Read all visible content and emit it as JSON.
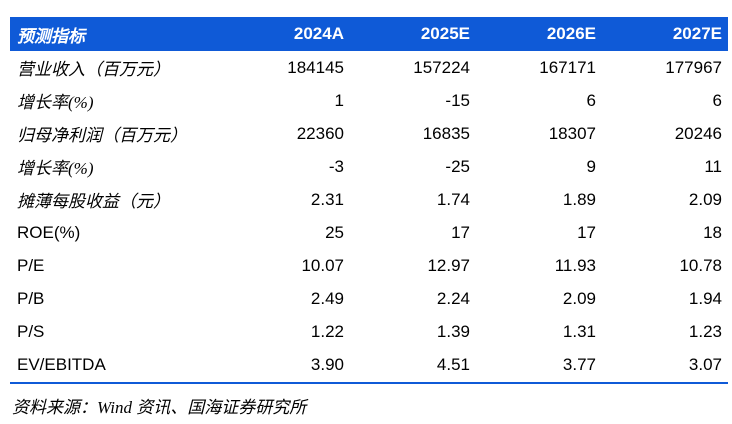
{
  "header": {
    "label": "预测指标",
    "years": [
      "2024A",
      "2025E",
      "2026E",
      "2027E"
    ]
  },
  "rows": [
    {
      "label": "营业收入（百万元）",
      "values": [
        "184145",
        "157224",
        "167171",
        "177967"
      ]
    },
    {
      "label": "增长率(%)",
      "values": [
        "1",
        "-15",
        "6",
        "6"
      ]
    },
    {
      "label": "归母净利润（百万元）",
      "values": [
        "22360",
        "16835",
        "18307",
        "20246"
      ]
    },
    {
      "label": "增长率(%)",
      "values": [
        "-3",
        "-25",
        "9",
        "11"
      ]
    },
    {
      "label": "摊薄每股收益（元）",
      "values": [
        "2.31",
        "1.74",
        "1.89",
        "2.09"
      ]
    },
    {
      "label": "ROE(%)",
      "values": [
        "25",
        "17",
        "17",
        "18"
      ]
    },
    {
      "label": "P/E",
      "values": [
        "10.07",
        "12.97",
        "11.93",
        "10.78"
      ]
    },
    {
      "label": "P/B",
      "values": [
        "2.49",
        "2.24",
        "2.09",
        "1.94"
      ]
    },
    {
      "label": "P/S",
      "values": [
        "1.22",
        "1.39",
        "1.31",
        "1.23"
      ]
    },
    {
      "label": "EV/EBITDA",
      "values": [
        "3.90",
        "4.51",
        "3.77",
        "3.07"
      ]
    }
  ],
  "footer": {
    "source": "资料来源：Wind 资讯、国海证券研究所"
  },
  "colors": {
    "header_bg": "#0f5ad7",
    "header_text": "#ffffff",
    "divider": "#0f5ad7",
    "body_text": "#000000"
  }
}
